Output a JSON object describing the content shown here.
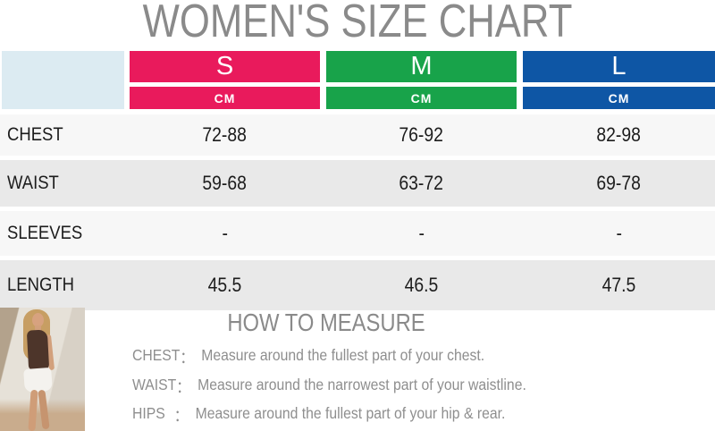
{
  "page_title": "WOMEN'S SIZE CHART",
  "size_table": {
    "columns": [
      {
        "size": "S",
        "unit": "CM",
        "color": "#e91a5c"
      },
      {
        "size": "M",
        "unit": "CM",
        "color": "#18a34a"
      },
      {
        "size": "L",
        "unit": "CM",
        "color": "#0e56a5"
      }
    ],
    "rows": [
      {
        "label": "CHEST",
        "values": [
          "72-88",
          "76-92",
          "82-98"
        ]
      },
      {
        "label": "WAIST",
        "values": [
          "59-68",
          "63-72",
          "69-78"
        ]
      },
      {
        "label": "SLEEVES",
        "values": [
          "-",
          "-",
          "-"
        ]
      },
      {
        "label": "LENGTH",
        "values": [
          "45.5",
          "46.5",
          "47.5"
        ]
      }
    ]
  },
  "how_to_measure": {
    "title": "HOW TO MEASURE",
    "items": [
      {
        "label": "CHEST",
        "colon": "：",
        "text": "Measure around the fullest part of your chest."
      },
      {
        "label": "WAIST",
        "colon": "：",
        "text": "Measure around the narrowest part of your waistline."
      },
      {
        "label": "HIPS",
        "colon": "：",
        "text": "Measure around the fullest part of your hip & rear."
      }
    ]
  },
  "colors": {
    "size_s": "#e91a5c",
    "size_m": "#18a34a",
    "size_l": "#0e56a5",
    "corner_cell": "#dcebf2",
    "row_alt": "#e9e9e9",
    "row_light": "#f7f7f7",
    "heading_gray": "#8a8a8a"
  }
}
